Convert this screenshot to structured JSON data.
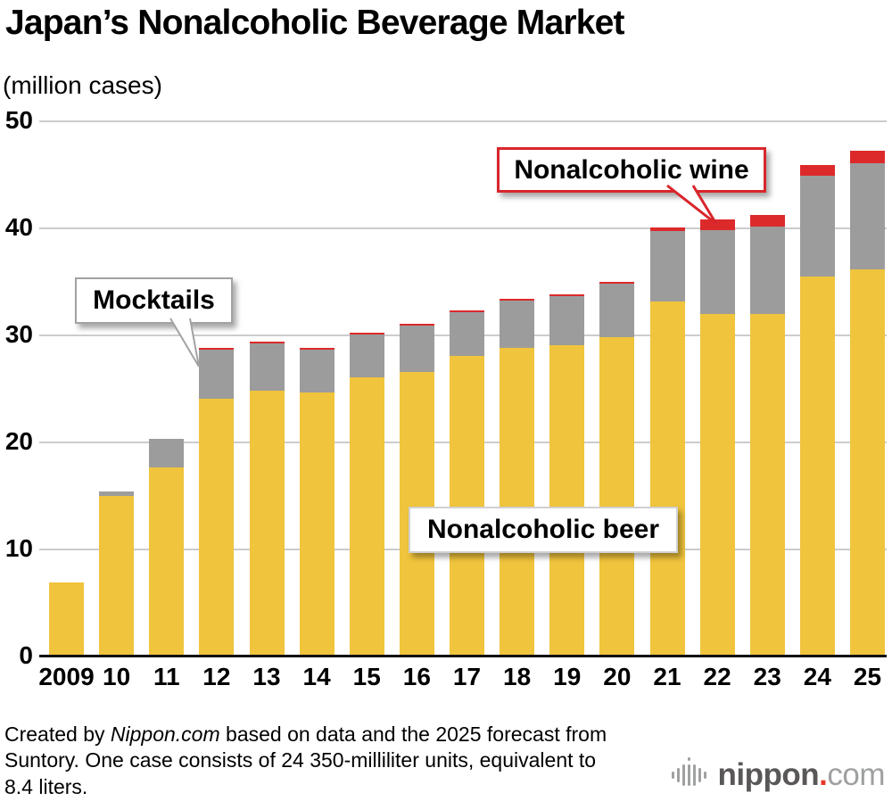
{
  "title": "Japan’s Nonalcoholic Beverage Market",
  "unit_label": "(million cases)",
  "chart_data": {
    "type": "bar",
    "stacked": true,
    "title": "Japan’s Nonalcoholic Beverage Market",
    "ylabel": "(million cases)",
    "ylim": [
      0,
      50
    ],
    "yticks": [
      0,
      10,
      20,
      30,
      40,
      50
    ],
    "grid": true,
    "legend_position": "none (labeled via callouts)",
    "categories": [
      "2009",
      "10",
      "11",
      "12",
      "13",
      "14",
      "15",
      "16",
      "17",
      "18",
      "19",
      "20",
      "21",
      "22",
      "23",
      "24",
      "25"
    ],
    "series": [
      {
        "name": "Nonalcoholic beer",
        "color": "#f0c43c",
        "values": [
          6.9,
          15.0,
          17.7,
          24.1,
          24.8,
          24.7,
          26.1,
          26.6,
          28.1,
          28.8,
          29.1,
          29.8,
          33.2,
          32.0,
          32.0,
          35.5,
          36.2
        ]
      },
      {
        "name": "Mocktails",
        "color": "#9c9c9c",
        "values": [
          0,
          0.4,
          2.7,
          4.6,
          4.4,
          4.0,
          4.0,
          4.3,
          4.1,
          4.4,
          4.6,
          5.0,
          6.6,
          7.8,
          8.2,
          9.4,
          9.9
        ]
      },
      {
        "name": "Nonalcoholic wine",
        "color": "#dc2a2b",
        "values": [
          0,
          0,
          0,
          0.2,
          0.2,
          0.2,
          0.2,
          0.2,
          0.2,
          0.2,
          0.2,
          0.2,
          0.3,
          1.0,
          1.1,
          1.0,
          1.2
        ]
      }
    ],
    "totals": [
      6.9,
      15.4,
      20.4,
      28.9,
      29.4,
      28.9,
      30.3,
      31.1,
      32.4,
      33.4,
      33.9,
      35.0,
      40.1,
      40.8,
      41.3,
      45.9,
      47.3
    ],
    "annotations": [
      {
        "text": "Mocktails",
        "points_to": {
          "category": "12",
          "series": "Mocktails"
        }
      },
      {
        "text": "Nonalcoholic wine",
        "points_to": {
          "category": "22",
          "series": "Nonalcoholic wine"
        }
      },
      {
        "text": "Nonalcoholic beer",
        "points_to": {
          "series": "Nonalcoholic beer"
        }
      }
    ]
  },
  "callouts": {
    "mocktails": "Mocktails",
    "wine": "Nonalcoholic wine",
    "beer": "Nonalcoholic beer"
  },
  "footer": {
    "line1_pre": "Created by ",
    "brand": "Nippon.com",
    "line1_post": " based on data and the 2025 forecast from",
    "line2": "Suntory. One case consists of 24 350-milliliter units, equivalent to",
    "line3": "8.4 liters."
  },
  "logo": {
    "name": "nippon",
    "dot": ".",
    "tld": "com"
  },
  "colors": {
    "beer": "#f0c43c",
    "mocktails": "#9c9c9c",
    "wine": "#dc2a2b",
    "gridline": "#cccccc",
    "axis": "#111111",
    "wine_callout_border": "#d8262c",
    "logo_dark_gray": "#595757",
    "logo_light_gray": "#9fa0a0",
    "logo_dot_red": "#e83828"
  }
}
